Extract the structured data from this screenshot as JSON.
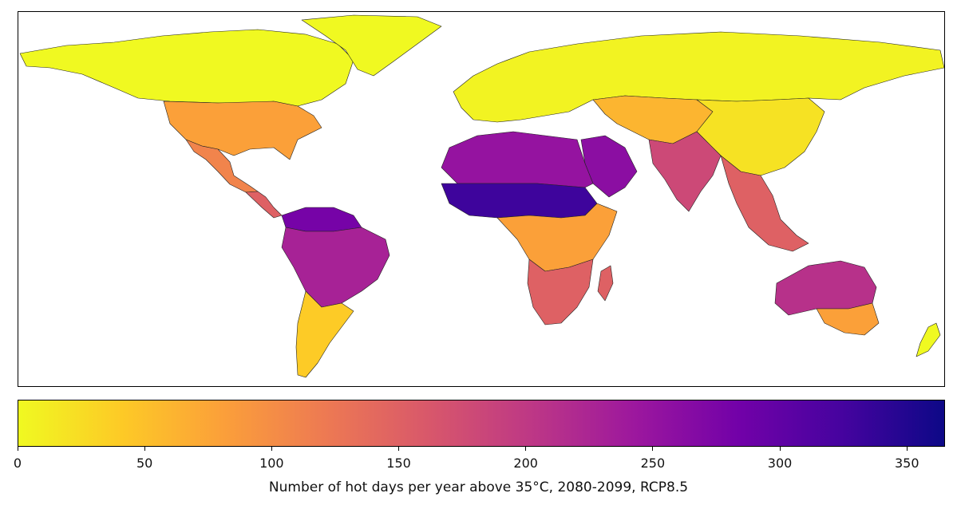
{
  "colorbar": {
    "label": "Number of hot days per year above 35°C, 2080-2099, RCP8.5",
    "min": 0,
    "max": 365,
    "ticks": [
      0,
      50,
      100,
      150,
      200,
      250,
      300,
      350
    ],
    "colormap": "plasma",
    "stops": [
      "#f0f921",
      "#fdca26",
      "#fb9f3a",
      "#ed7953",
      "#d8576b",
      "#bd3786",
      "#9c179e",
      "#7201a8",
      "#46039f",
      "#0d0887"
    ]
  },
  "regions": [
    {
      "name": "Canada / Alaska",
      "days": 0
    },
    {
      "name": "Greenland",
      "days": 0
    },
    {
      "name": "USA south",
      "days": 80
    },
    {
      "name": "Mexico",
      "days": 110
    },
    {
      "name": "Central America",
      "days": 150
    },
    {
      "name": "Northern South America",
      "days": 280
    },
    {
      "name": "Brazil interior",
      "days": 230
    },
    {
      "name": "Southern South America",
      "days": 40
    },
    {
      "name": "Europe / Russia",
      "days": 5
    },
    {
      "name": "Sahara",
      "days": 250
    },
    {
      "name": "Sahel",
      "days": 330
    },
    {
      "name": "Arabian Peninsula",
      "days": 260
    },
    {
      "name": "India",
      "days": 180
    },
    {
      "name": "Central Asia",
      "days": 60
    },
    {
      "name": "China",
      "days": 20
    },
    {
      "name": "Southeast Asia",
      "days": 150
    },
    {
      "name": "Central Africa",
      "days": 80
    },
    {
      "name": "Southern Africa",
      "days": 150
    },
    {
      "name": "Northern Australia",
      "days": 210
    },
    {
      "name": "Southern Australia",
      "days": 80
    },
    {
      "name": "New Zealand",
      "days": 0
    }
  ]
}
